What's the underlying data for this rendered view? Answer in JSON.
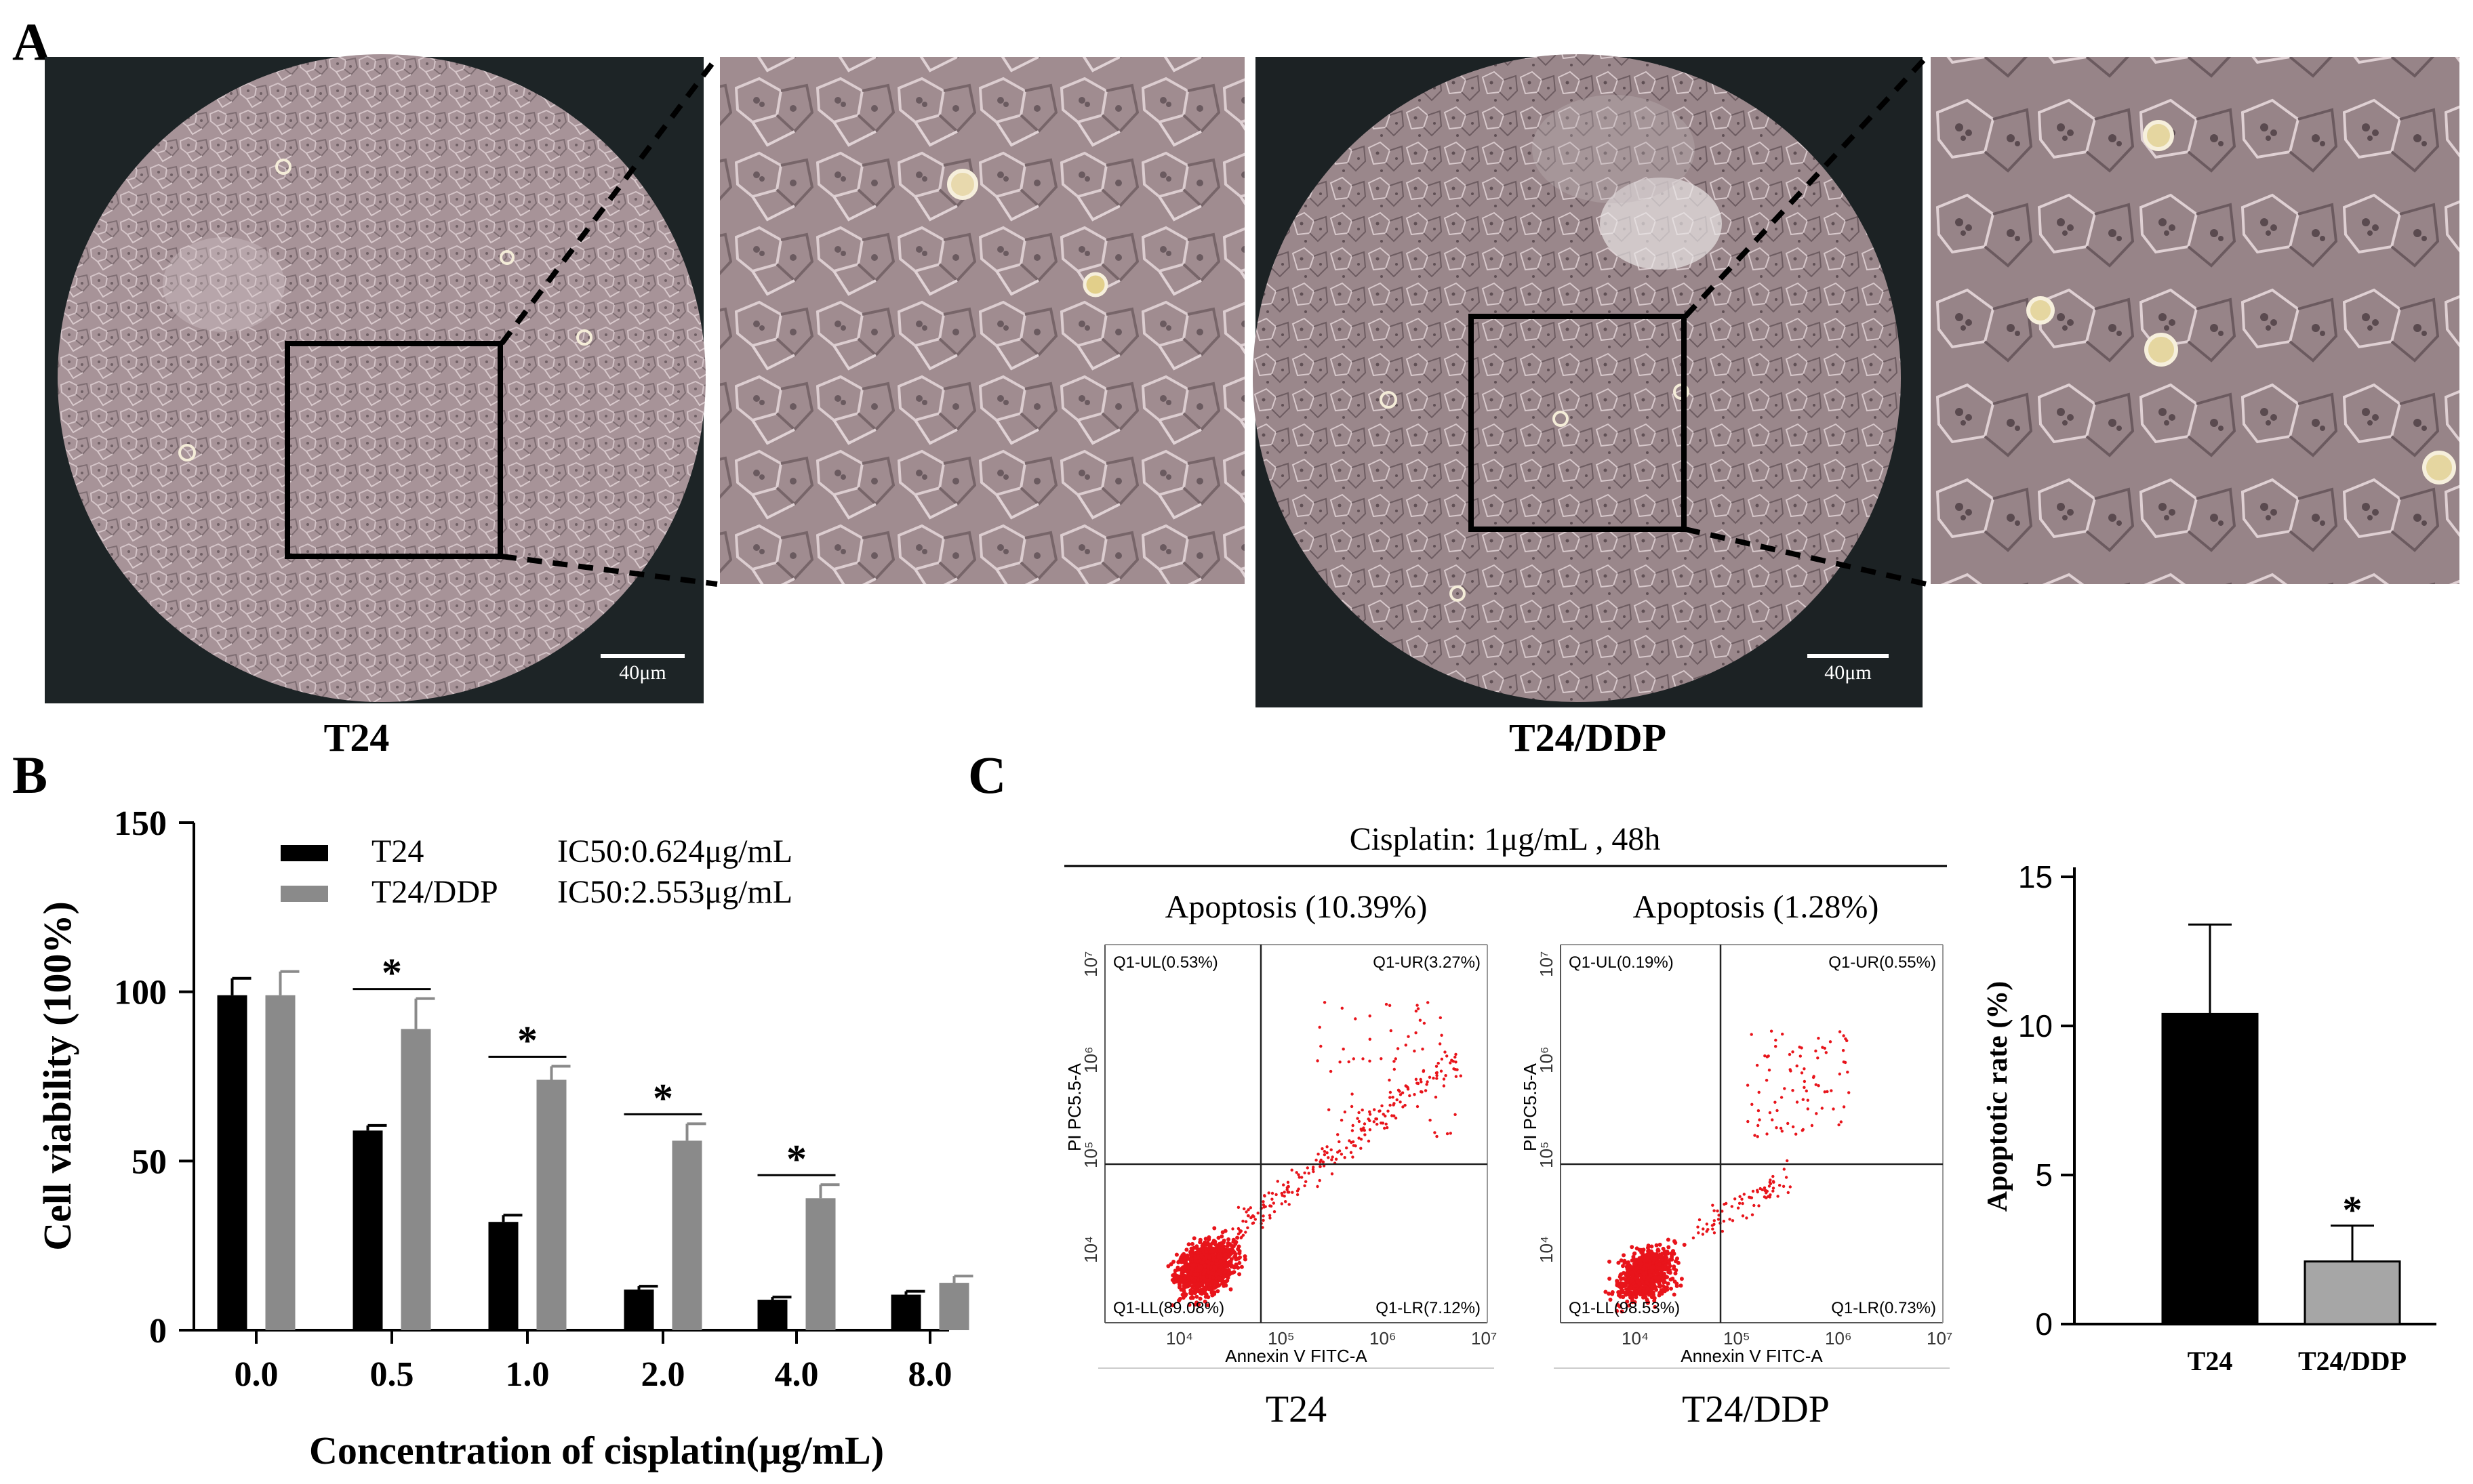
{
  "panel_a": {
    "letter": "A",
    "left_label": "T24",
    "right_label": "T24/DDP",
    "scale_bar_text": "40μm"
  },
  "panel_b": {
    "letter": "B",
    "legend": {
      "t24": "T24",
      "t24ddp": "T24/DDP",
      "t24_ic50": "IC50:0.624μg/mL",
      "t24ddp_ic50": "IC50:2.553μg/mL"
    },
    "sig_marker": "*"
  },
  "panel_c": {
    "letter": "C",
    "condition": "Cisplatin: 1μg/mL , 48h",
    "flow": [
      {
        "title": "Apoptosis (10.39%)",
        "ul": "Q1-UL(0.53%)",
        "ur": "Q1-UR(3.27%)",
        "ll": "Q1-LL(89.08%)",
        "lr": "Q1-LR(7.12%)",
        "xlabel": "Annexin V FITC-A",
        "ylabel": "PI PC5.5-A",
        "caption": "T24"
      },
      {
        "title": "Apoptosis (1.28%)",
        "ul": "Q1-UL(0.19%)",
        "ur": "Q1-UR(0.55%)",
        "ll": "Q1-LL(98.53%)",
        "lr": "Q1-LR(0.73%)",
        "xlabel": "Annexin V FITC-A",
        "ylabel": "PI PC5.5-A",
        "caption": "T24/DDP"
      }
    ],
    "flow_ticks": [
      "10⁴",
      "10⁵",
      "10⁶",
      "10⁷"
    ],
    "flow_y_ticks": [
      "10⁷",
      "10⁶",
      "10⁵",
      "10⁴"
    ]
  },
  "colors": {
    "t24": "#000000",
    "t24ddp": "#8a8a8a",
    "t24ddp_c": "#a6a6a6",
    "dots": "#e8141b",
    "micrograph": "#9c8a8e"
  },
  "chart_data": [
    {
      "type": "bar",
      "id": "cell-viability",
      "categories": [
        "0.0",
        "0.5",
        "1.0",
        "2.0",
        "4.0",
        "8.0"
      ],
      "series": [
        {
          "name": "T24",
          "values": [
            99,
            59,
            32,
            12,
            9,
            10.5
          ],
          "errors": [
            5,
            1.5,
            2,
            1,
            0.8,
            1
          ]
        },
        {
          "name": "T24/DDP",
          "values": [
            99,
            89,
            74,
            56,
            39,
            14
          ],
          "errors": [
            7,
            9,
            4,
            5,
            4,
            2
          ]
        }
      ],
      "significant": [
        false,
        true,
        true,
        true,
        true,
        false
      ],
      "xlabel": "Concentration of cisplatin(μg/mL)",
      "ylabel": "Cell viability (100%)",
      "yticks": [
        "0",
        "50",
        "100",
        "150"
      ],
      "ylim": [
        0,
        150
      ]
    },
    {
      "type": "bar",
      "id": "apoptotic-rate",
      "categories": [
        "T24",
        "T24/DDP"
      ],
      "values": [
        10.4,
        2.1
      ],
      "errors": [
        3.0,
        1.2
      ],
      "significant": [
        false,
        true
      ],
      "ylabel": "Apoptotic rate (%)",
      "yticks": [
        "0",
        "5",
        "10",
        "15"
      ],
      "ylim": [
        0,
        15
      ]
    }
  ]
}
